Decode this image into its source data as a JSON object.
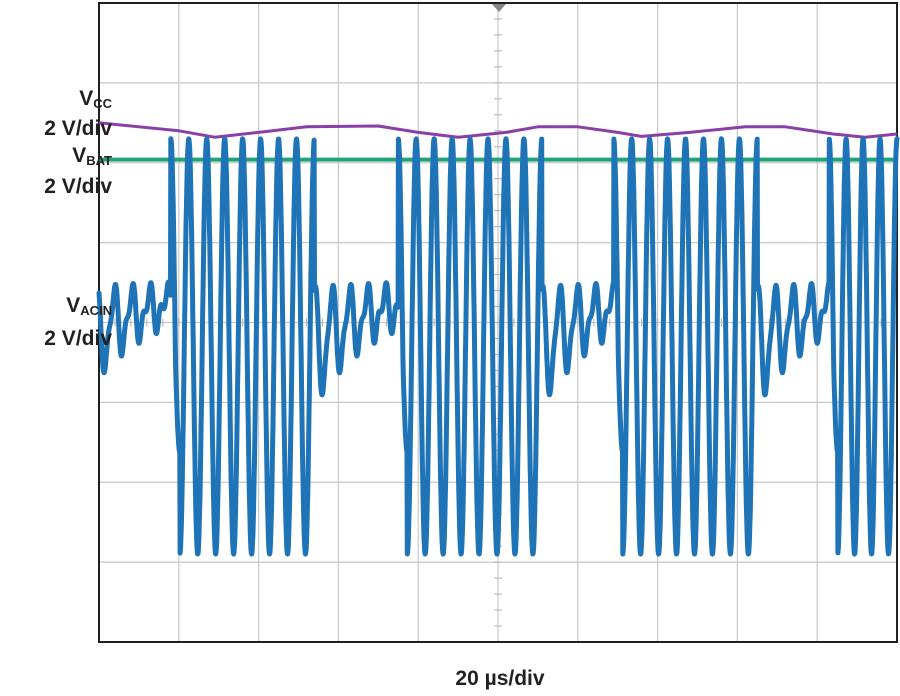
{
  "chart_data": {
    "type": "line",
    "title": "",
    "xlabel": "20 µs/div",
    "grid": true,
    "grid_divisions": {
      "x": 10,
      "y": 8
    },
    "x_unit": "divisions (20 µs/div)",
    "xlim": [
      0,
      10
    ],
    "ylim": [
      -4,
      4
    ],
    "channel_labels": [
      {
        "id": "vcc",
        "name": "V",
        "sub": "CC",
        "scale": "2 V/div"
      },
      {
        "id": "vbat",
        "name": "V",
        "sub": "BAT",
        "scale": "2 V/div"
      },
      {
        "id": "vacin",
        "name": "V",
        "sub": "ACIN",
        "scale": "2 V/div"
      }
    ],
    "series": [
      {
        "id": "vcc",
        "color": "#8a3fa8",
        "x": [
          0,
          1.0,
          1.45,
          2.0,
          2.6,
          3.5,
          4.0,
          4.5,
          5.1,
          5.5,
          6.0,
          6.5,
          6.8,
          7.4,
          8.1,
          8.6,
          9.2,
          9.6,
          10
        ],
        "y": [
          2.5,
          2.4,
          2.32,
          2.38,
          2.45,
          2.46,
          2.38,
          2.32,
          2.38,
          2.45,
          2.45,
          2.38,
          2.33,
          2.38,
          2.45,
          2.45,
          2.36,
          2.32,
          2.36
        ]
      },
      {
        "id": "vbat",
        "color": "#21a37a",
        "x": [
          0,
          10
        ],
        "y": [
          2.04,
          2.04
        ]
      },
      {
        "id": "vacin",
        "color": "#1f74b8",
        "bursts": [
          {
            "x_start": 0.9,
            "x_end": 2.7,
            "cycles": 8
          },
          {
            "x_start": 3.75,
            "x_end": 5.55,
            "cycles": 8
          },
          {
            "x_start": 6.45,
            "x_end": 8.25,
            "cycles": 8
          },
          {
            "x_start": 9.15,
            "x_end": 10.0,
            "cycles": 4
          }
        ],
        "burst_peak_high": 2.3,
        "burst_peak_low": -2.9,
        "idle_level": 0.4,
        "idle_dip": -1.0
      }
    ]
  }
}
